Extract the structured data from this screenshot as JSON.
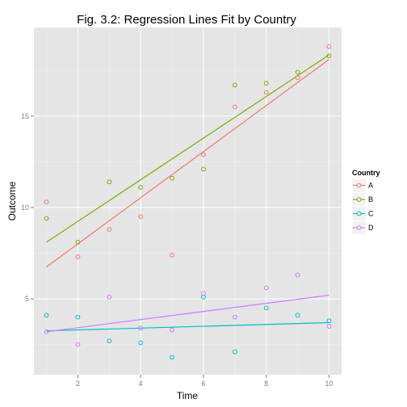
{
  "chart_data": {
    "type": "scatter",
    "title": "Fig. 3.2: Regression Lines Fit by Country",
    "xlabel": "Time",
    "ylabel": "Outcome",
    "xlim": [
      0.6,
      10.4
    ],
    "ylim": [
      0.85,
      19.85
    ],
    "x_ticks": [
      2,
      4,
      6,
      8,
      10
    ],
    "x_tick_labels": [
      "2",
      "4",
      "6",
      "8",
      "10"
    ],
    "y_ticks": [
      5,
      10,
      15
    ],
    "y_tick_labels": [
      "5",
      "10",
      "15"
    ],
    "grid": true,
    "legend": {
      "title": "Country",
      "position": "right"
    },
    "series": [
      {
        "name": "A",
        "color": "#F8766D",
        "x": [
          1,
          2,
          3,
          4,
          5,
          6,
          7,
          8,
          9,
          10
        ],
        "y": [
          10.3,
          7.3,
          8.8,
          9.5,
          7.4,
          12.9,
          15.5,
          16.3,
          17.1,
          18.8
        ],
        "fit": {
          "x": [
            1,
            10
          ],
          "y": [
            6.75,
            18.1
          ]
        }
      },
      {
        "name": "B",
        "color": "#7CAE00",
        "x": [
          1,
          2,
          3,
          4,
          5,
          6,
          7,
          8,
          9,
          10
        ],
        "y": [
          9.4,
          8.1,
          11.4,
          11.1,
          11.6,
          12.1,
          16.7,
          16.8,
          17.4,
          18.3
        ],
        "fit": {
          "x": [
            1,
            10
          ],
          "y": [
            8.1,
            18.35
          ]
        }
      },
      {
        "name": "C",
        "color": "#00BFC4",
        "x": [
          1,
          2,
          3,
          4,
          5,
          6,
          7,
          8,
          9,
          10
        ],
        "y": [
          4.1,
          4.0,
          2.7,
          2.6,
          1.8,
          5.1,
          2.1,
          4.5,
          4.1,
          3.8
        ],
        "fit": {
          "x": [
            1,
            10
          ],
          "y": [
            3.25,
            3.7
          ]
        }
      },
      {
        "name": "D",
        "color": "#C77CFF",
        "x": [
          1,
          2,
          3,
          4,
          5,
          6,
          7,
          8,
          9,
          10
        ],
        "y": [
          3.2,
          2.5,
          5.1,
          3.4,
          3.3,
          5.3,
          4.0,
          5.6,
          6.3,
          3.5
        ],
        "fit": {
          "x": [
            1,
            10
          ],
          "y": [
            3.2,
            5.2
          ]
        }
      }
    ]
  },
  "colors": {
    "panel_background": "#E5E5E5",
    "grid_major": "#FFFFFF",
    "grid_minor": "#F2F2F2"
  }
}
